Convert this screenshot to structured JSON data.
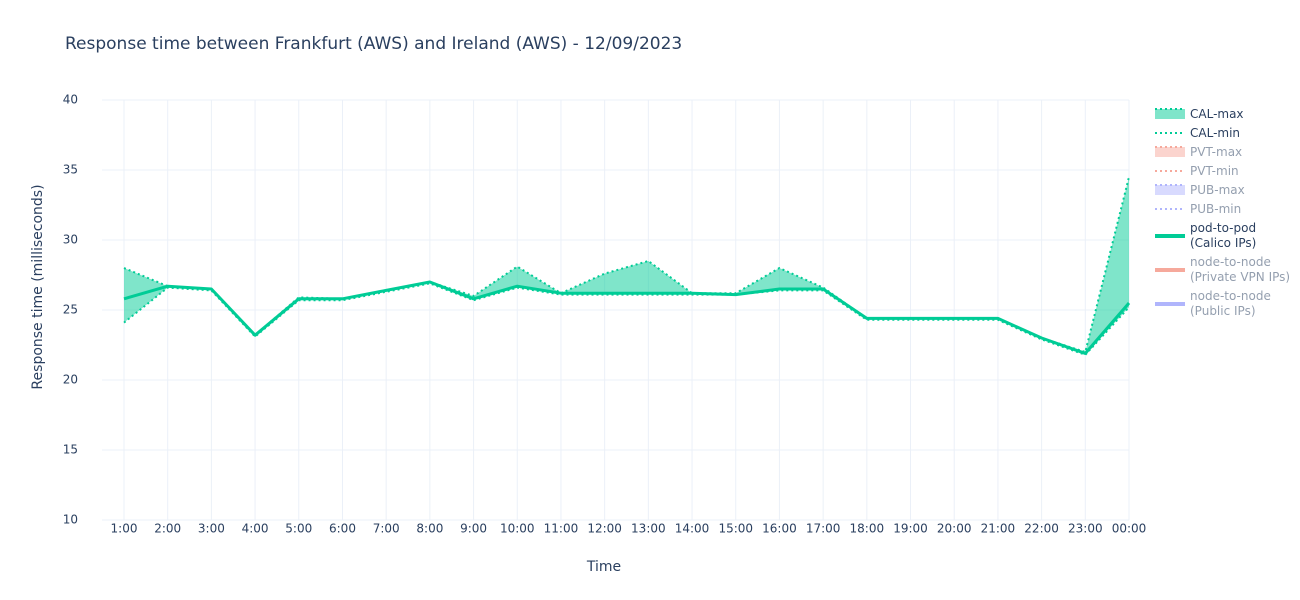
{
  "chart_data": {
    "type": "line",
    "title": "Response time between Frankfurt (AWS) and Ireland (AWS)   -   12/09/2023",
    "x_label": "Time",
    "y_label": "Response time (milliseconds)",
    "categories": [
      "1:00",
      "2:00",
      "3:00",
      "4:00",
      "5:00",
      "6:00",
      "7:00",
      "8:00",
      "9:00",
      "10:00",
      "11:00",
      "12:00",
      "13:00",
      "14:00",
      "15:00",
      "16:00",
      "17:00",
      "18:00",
      "19:00",
      "20:00",
      "21:00",
      "22:00",
      "23:00",
      "00:00"
    ],
    "ylim": [
      10,
      40
    ],
    "yticks": [
      10,
      15,
      20,
      25,
      30,
      35,
      40
    ],
    "grid": true,
    "legend": "right",
    "series": [
      {
        "name": "CAL-max",
        "color": "#00cc96",
        "dash": "dot",
        "fill": "tonexty",
        "visible": true,
        "values": [
          28.0,
          26.7,
          26.5,
          23.2,
          25.9,
          25.8,
          26.4,
          27.0,
          26.0,
          28.1,
          26.2,
          27.6,
          28.5,
          26.2,
          26.2,
          28.0,
          26.6,
          24.4,
          24.4,
          24.4,
          24.4,
          23.0,
          22.0,
          34.5
        ]
      },
      {
        "name": "CAL-min",
        "color": "#00cc96",
        "dash": "dot",
        "visible": true,
        "values": [
          24.1,
          26.6,
          26.4,
          23.1,
          25.7,
          25.7,
          26.3,
          26.9,
          25.7,
          26.6,
          26.1,
          26.1,
          26.1,
          26.1,
          26.1,
          26.4,
          26.4,
          24.3,
          24.3,
          24.3,
          24.3,
          22.9,
          21.8,
          25.2
        ]
      },
      {
        "name": "PVT-max",
        "color": "#ef553b",
        "dash": "dot",
        "fill": "tonexty",
        "visible": "legendonly"
      },
      {
        "name": "PVT-min",
        "color": "#ef553b",
        "dash": "dot",
        "visible": "legendonly"
      },
      {
        "name": "PUB-max",
        "color": "#636efa",
        "dash": "dot",
        "fill": "tonexty",
        "visible": "legendonly"
      },
      {
        "name": "PUB-min",
        "color": "#636efa",
        "dash": "dot",
        "visible": "legendonly"
      },
      {
        "name": "pod-to-pod\n(Calico IPs)",
        "color": "#00cc96",
        "dash": "solid",
        "visible": true,
        "values": [
          25.8,
          26.7,
          26.5,
          23.2,
          25.8,
          25.8,
          26.4,
          27.0,
          25.8,
          26.7,
          26.2,
          26.2,
          26.2,
          26.2,
          26.1,
          26.5,
          26.5,
          24.4,
          24.4,
          24.4,
          24.4,
          23.0,
          21.9,
          25.5
        ]
      },
      {
        "name": "node-to-node\n(Private VPN IPs)",
        "color": "#ef553b",
        "dash": "solid",
        "visible": "legendonly"
      },
      {
        "name": "node-to-node\n(Public IPs)",
        "color": "#636efa",
        "dash": "solid",
        "visible": "legendonly"
      }
    ]
  }
}
